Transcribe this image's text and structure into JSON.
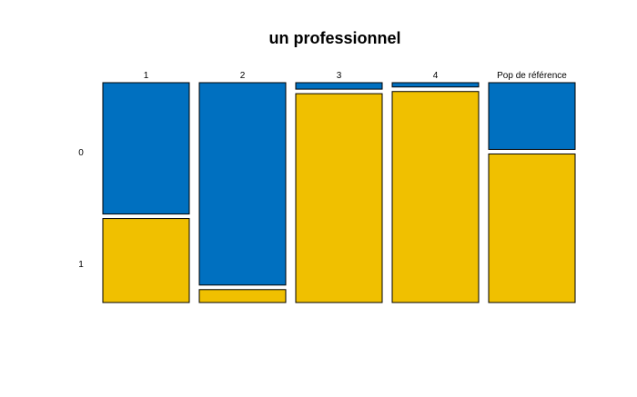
{
  "chart_data": {
    "type": "mosaic",
    "title": "un professionnel",
    "categories": [
      "1",
      "2",
      "3",
      "4",
      "Pop de référence"
    ],
    "row_labels": [
      "0",
      "1"
    ],
    "series": [
      {
        "name": "0",
        "color": "#0070C0",
        "values": [
          0.61,
          0.94,
          0.03,
          0.02,
          0.31
        ]
      },
      {
        "name": "1",
        "color": "#F0C000",
        "values": [
          0.39,
          0.06,
          0.97,
          0.98,
          0.69
        ]
      }
    ],
    "grid": false
  }
}
